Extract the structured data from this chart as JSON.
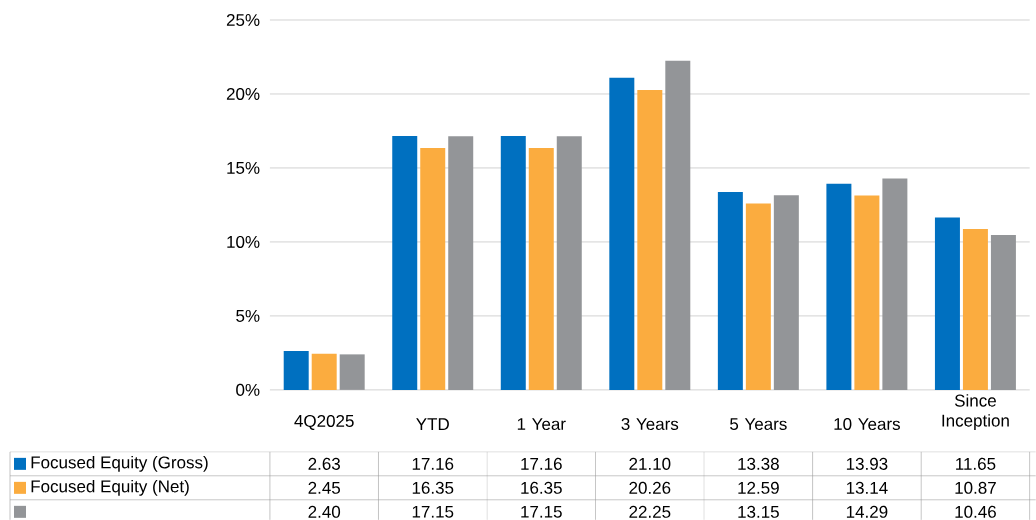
{
  "chart_data": {
    "type": "bar",
    "categories": [
      "4Q2025",
      "YTD",
      "1 Year",
      "3 Years",
      "5 Years",
      "10 Years",
      "Since Inception"
    ],
    "series": [
      {
        "name": "Focused Equity (Gross)",
        "color": "#0070c0",
        "values": [
          2.63,
          17.16,
          17.16,
          21.1,
          13.38,
          13.93,
          11.65
        ],
        "value_labels": [
          "2.63",
          "17.16",
          "17.16",
          "21.10",
          "13.38",
          "13.93",
          "11.65"
        ]
      },
      {
        "name": "Focused Equity (Net)",
        "color": "#fbac3f",
        "values": [
          2.45,
          16.35,
          16.35,
          20.26,
          12.59,
          13.14,
          10.87
        ],
        "value_labels": [
          "2.45",
          "16.35",
          "16.35",
          "20.26",
          "12.59",
          "13.14",
          "10.87"
        ]
      },
      {
        "color": "#939598",
        "values": [
          2.4,
          17.15,
          17.15,
          22.25,
          13.15,
          14.29,
          10.46
        ],
        "value_labels": [
          "2.40",
          "17.15",
          "17.15",
          "22.25",
          "13.15",
          "14.29",
          "10.46"
        ]
      }
    ],
    "ylim": [
      0,
      25
    ],
    "yticks": [
      {
        "value": 0,
        "label": "0%"
      },
      {
        "value": 5,
        "label": "5%"
      },
      {
        "value": 10,
        "label": "10%"
      },
      {
        "value": 15,
        "label": "15%"
      },
      {
        "value": 20,
        "label": "20%"
      },
      {
        "value": 25,
        "label": "25%"
      }
    ],
    "grid": "y",
    "legend": "bottom"
  }
}
